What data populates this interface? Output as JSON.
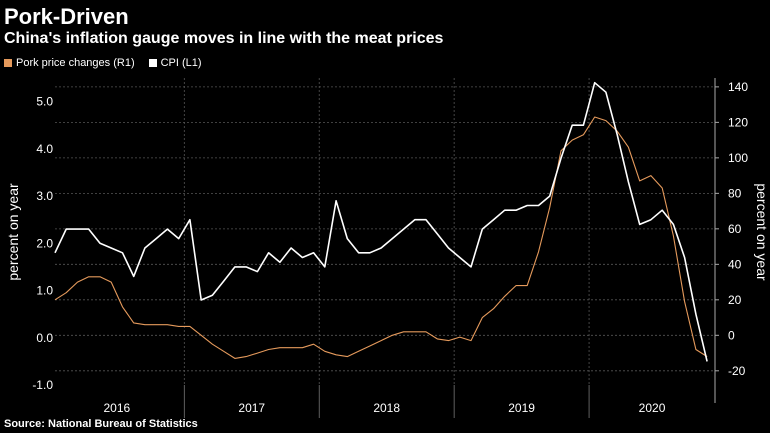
{
  "title": "Pork-Driven",
  "subtitle": "China's inflation gauge moves in line with the meat prices",
  "source": "Source: National Bureau of Statistics",
  "colors": {
    "background": "#000000",
    "cpi": "#ffffff",
    "pork": "#e59a5c",
    "grid": "#555555"
  },
  "chart_data": {
    "type": "line",
    "legend_position": "top-left",
    "x_categories": [
      "2016",
      "2017",
      "2018",
      "2019",
      "2020"
    ],
    "x_range": [
      "2016-01",
      "2020-11"
    ],
    "left_axis": {
      "label": "percent on year",
      "range": [
        -1.0,
        5.5
      ],
      "ticks": [
        "5.0",
        "4.0",
        "3.0",
        "2.0",
        "1.0",
        "0.0",
        "-1.0"
      ]
    },
    "right_axis": {
      "label": "percent on year",
      "range": [
        -28,
        145
      ],
      "ticks": [
        "140",
        "120",
        "100",
        "80",
        "60",
        "40",
        "20",
        "0",
        "-20"
      ]
    },
    "grid": true,
    "series": [
      {
        "name": "CPI (L1)",
        "axis": "left",
        "color": "#ffffff",
        "x": [
          "2016-01",
          "2016-02",
          "2016-03",
          "2016-04",
          "2016-05",
          "2016-06",
          "2016-07",
          "2016-08",
          "2016-09",
          "2016-10",
          "2016-11",
          "2016-12",
          "2017-01",
          "2017-02",
          "2017-03",
          "2017-04",
          "2017-05",
          "2017-06",
          "2017-07",
          "2017-08",
          "2017-09",
          "2017-10",
          "2017-11",
          "2017-12",
          "2018-01",
          "2018-02",
          "2018-03",
          "2018-04",
          "2018-05",
          "2018-06",
          "2018-07",
          "2018-08",
          "2018-09",
          "2018-10",
          "2018-11",
          "2018-12",
          "2019-01",
          "2019-02",
          "2019-03",
          "2019-04",
          "2019-05",
          "2019-06",
          "2019-07",
          "2019-08",
          "2019-09",
          "2019-10",
          "2019-11",
          "2019-12",
          "2020-01",
          "2020-02",
          "2020-03",
          "2020-04",
          "2020-05",
          "2020-06",
          "2020-07",
          "2020-08",
          "2020-09",
          "2020-10",
          "2020-11"
        ],
        "values": [
          1.8,
          2.3,
          2.3,
          2.3,
          2.0,
          1.9,
          1.8,
          1.3,
          1.9,
          2.1,
          2.3,
          2.1,
          2.5,
          0.8,
          0.9,
          1.2,
          1.5,
          1.5,
          1.4,
          1.8,
          1.6,
          1.9,
          1.7,
          1.8,
          1.5,
          2.9,
          2.1,
          1.8,
          1.8,
          1.9,
          2.1,
          2.3,
          2.5,
          2.5,
          2.2,
          1.9,
          1.7,
          1.5,
          2.3,
          2.5,
          2.7,
          2.7,
          2.8,
          2.8,
          3.0,
          3.8,
          4.5,
          4.5,
          5.4,
          5.2,
          4.3,
          3.3,
          2.4,
          2.5,
          2.7,
          2.4,
          1.7,
          0.5,
          -0.5
        ]
      },
      {
        "name": "Pork price changes (R1)",
        "axis": "right",
        "color": "#e59a5c",
        "x": [
          "2016-01",
          "2016-02",
          "2016-03",
          "2016-04",
          "2016-05",
          "2016-06",
          "2016-07",
          "2016-08",
          "2016-09",
          "2016-10",
          "2016-11",
          "2016-12",
          "2017-01",
          "2017-02",
          "2017-03",
          "2017-04",
          "2017-05",
          "2017-06",
          "2017-07",
          "2017-08",
          "2017-09",
          "2017-10",
          "2017-11",
          "2017-12",
          "2018-01",
          "2018-02",
          "2018-03",
          "2018-04",
          "2018-05",
          "2018-06",
          "2018-07",
          "2018-08",
          "2018-09",
          "2018-10",
          "2018-11",
          "2018-12",
          "2019-01",
          "2019-02",
          "2019-03",
          "2019-04",
          "2019-05",
          "2019-06",
          "2019-07",
          "2019-08",
          "2019-09",
          "2019-10",
          "2019-11",
          "2019-12",
          "2020-01",
          "2020-02",
          "2020-03",
          "2020-04",
          "2020-05",
          "2020-06",
          "2020-07",
          "2020-08",
          "2020-09",
          "2020-10",
          "2020-11"
        ],
        "values": [
          20,
          24,
          30,
          33,
          33,
          30,
          16,
          7,
          6,
          6,
          6,
          5,
          5,
          0,
          -5,
          -9,
          -13,
          -12,
          -10,
          -8,
          -7,
          -7,
          -7,
          -5,
          -9,
          -11,
          -12,
          -9,
          -6,
          -3,
          0,
          2,
          2,
          2,
          -2,
          -3,
          -1,
          -3,
          10,
          15,
          22,
          28,
          28,
          47,
          72,
          104,
          110,
          113,
          123,
          121,
          115,
          106,
          87,
          90,
          83,
          56,
          19,
          -8,
          -12
        ]
      }
    ]
  }
}
